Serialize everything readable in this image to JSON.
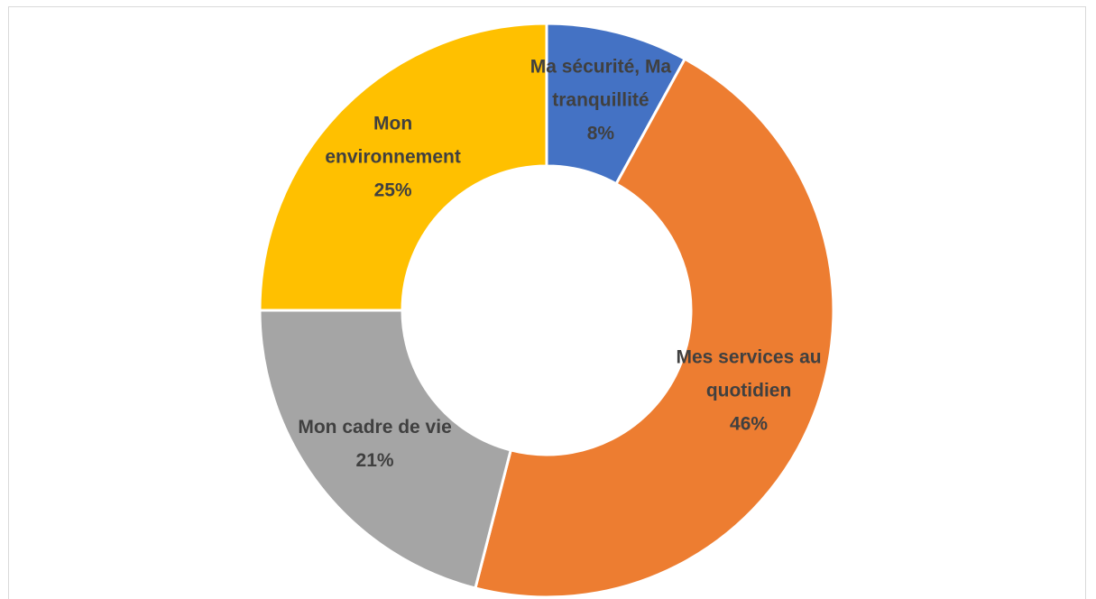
{
  "chart_data": {
    "type": "donut",
    "categories": [
      "Ma sécurité, Ma tranquillité",
      "Mes services au quotidien",
      "Mon cadre de vie",
      "Mon environnement"
    ],
    "values": [
      8,
      46,
      21,
      25
    ],
    "value_labels": [
      "8%",
      "46%",
      "21%",
      "25%"
    ],
    "colors": [
      "#4472c4",
      "#ed7d31",
      "#a5a5a5",
      "#ffc000"
    ]
  }
}
